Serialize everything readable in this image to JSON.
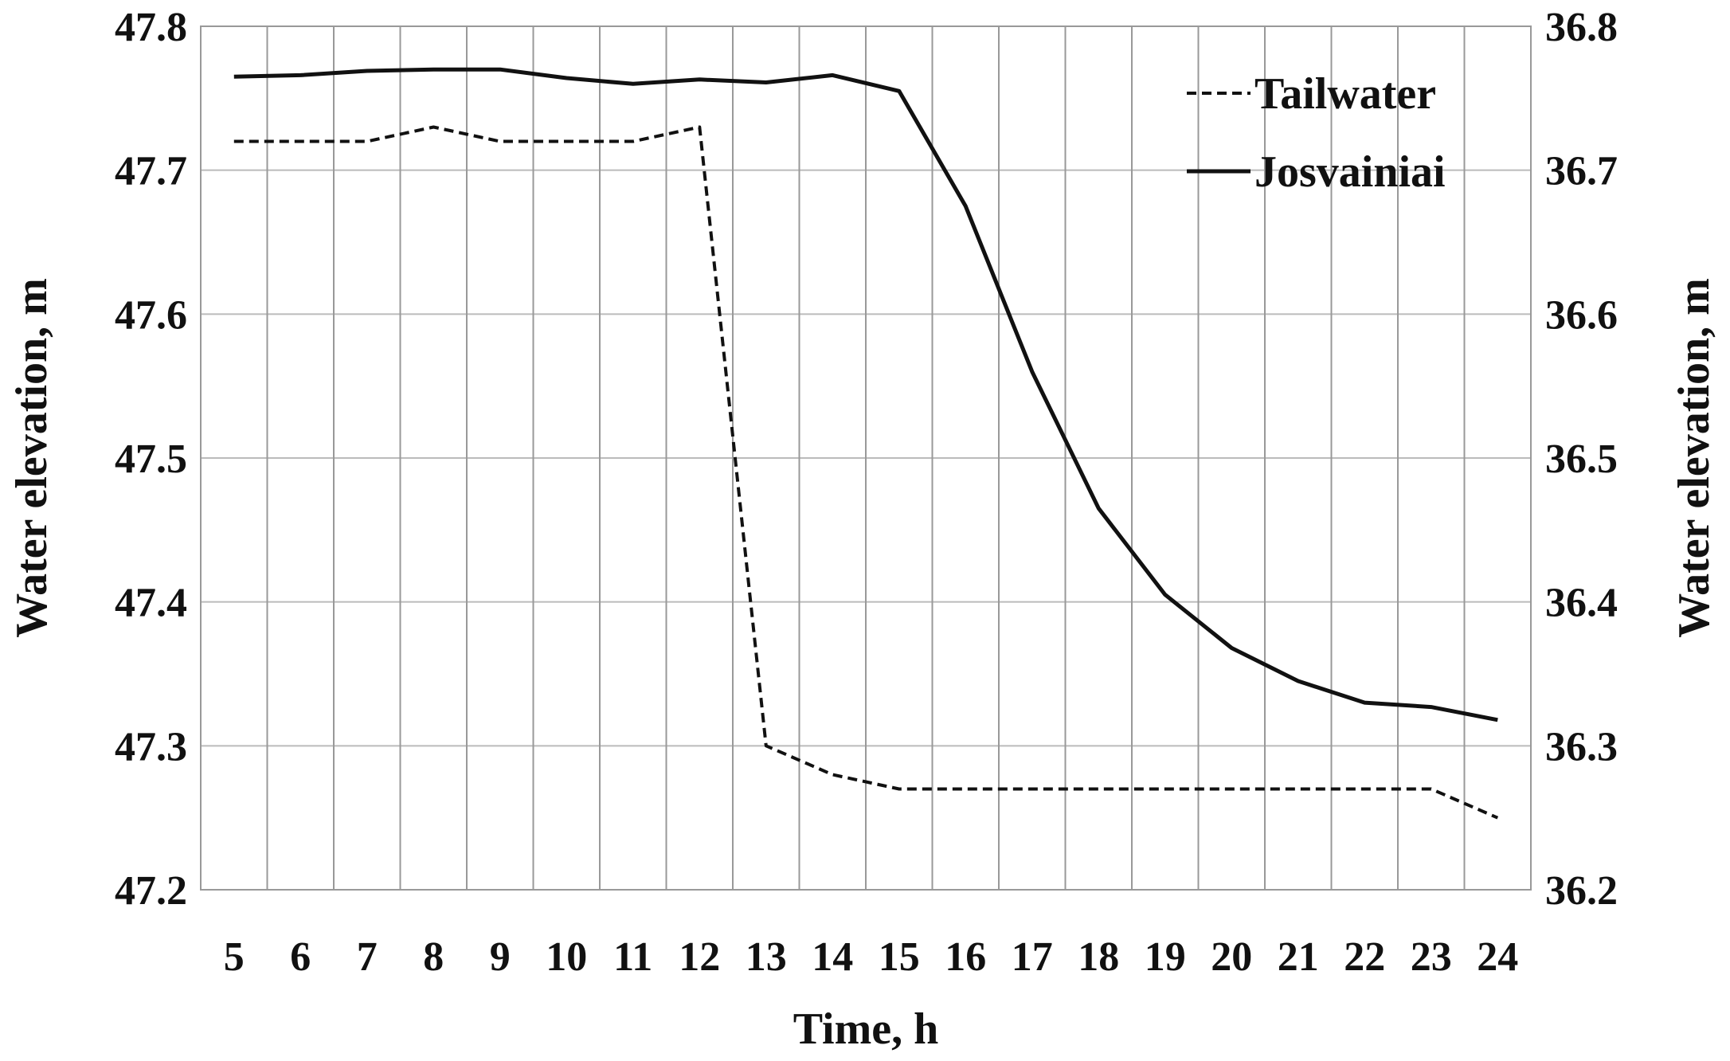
{
  "chart_data": {
    "type": "line",
    "xlabel": "Time, h",
    "ylabel_left": "Water elevation, m",
    "ylabel_right": "Water elevation, m",
    "x": [
      5,
      6,
      7,
      8,
      9,
      10,
      11,
      12,
      13,
      14,
      15,
      16,
      17,
      18,
      19,
      20,
      21,
      22,
      23,
      24
    ],
    "x_tick_labels": [
      "5",
      "6",
      "7",
      "8",
      "9",
      "10",
      "11",
      "12",
      "13",
      "14",
      "15",
      "16",
      "17",
      "18",
      "19",
      "20",
      "21",
      "22",
      "23",
      "24"
    ],
    "ylim_left": [
      47.2,
      47.8
    ],
    "ylim_right": [
      36.2,
      36.8
    ],
    "y_ticks_left": [
      "47.2",
      "47.3",
      "47.4",
      "47.5",
      "47.6",
      "47.7",
      "47.8"
    ],
    "y_ticks_right": [
      "36.2",
      "36.3",
      "36.4",
      "36.5",
      "36.6",
      "36.7",
      "36.8"
    ],
    "grid": true,
    "legend_position": "top-right",
    "series": [
      {
        "name": "Tailwater",
        "axis": "left",
        "style": "dashed",
        "color": "#111111",
        "values": [
          47.72,
          47.72,
          47.72,
          47.73,
          47.72,
          47.72,
          47.72,
          47.73,
          47.3,
          47.28,
          47.27,
          47.27,
          47.27,
          47.27,
          47.27,
          47.27,
          47.27,
          47.27,
          47.27,
          47.25
        ]
      },
      {
        "name": "Josvainiai",
        "axis": "right",
        "style": "solid",
        "color": "#111111",
        "values": [
          36.765,
          36.766,
          36.769,
          36.77,
          36.77,
          36.764,
          36.76,
          36.763,
          36.761,
          36.766,
          36.755,
          36.675,
          36.56,
          36.465,
          36.405,
          36.368,
          36.345,
          36.33,
          36.327,
          36.318
        ]
      }
    ]
  }
}
